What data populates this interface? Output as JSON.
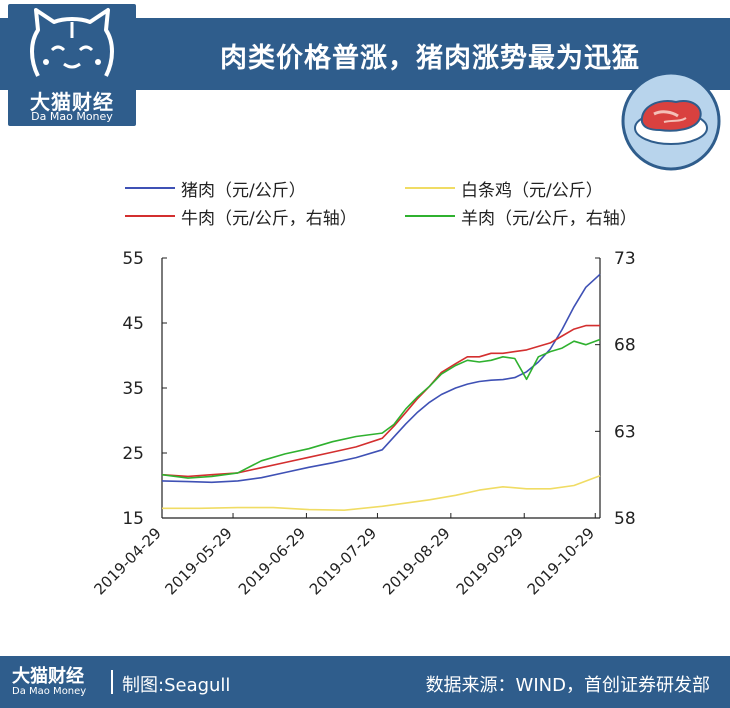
{
  "header": {
    "title": "肉类价格普涨，猪肉涨势最为迅猛",
    "logo_cn": "大猫财经",
    "logo_en": "Da Mao Money"
  },
  "footer": {
    "logo_cn": "大猫财经",
    "logo_en": "Da Mao Money",
    "credit": "制图:Seagull",
    "source": "数据来源：WIND，首创证券研发部"
  },
  "colors": {
    "header_bg": "#2f5d8c",
    "pork": "#3f51b5",
    "chicken": "#f0dc64",
    "beef": "#d32f2f",
    "mutton": "#2fb12f"
  },
  "chart_data": {
    "type": "line",
    "title": "",
    "x_ticks": [
      "2019-04-29",
      "2019-05-29",
      "2019-06-29",
      "2019-07-29",
      "2019-08-29",
      "2019-09-29",
      "2019-10-29"
    ],
    "x_range": [
      "2019-04-29",
      "2019-10-31"
    ],
    "y_left": {
      "range": [
        15,
        55
      ],
      "ticks": [
        15,
        25,
        35,
        45,
        55
      ]
    },
    "y_right": {
      "range": [
        58,
        73
      ],
      "ticks": [
        58,
        63,
        68,
        73
      ]
    },
    "grid": false,
    "legend_position": "top",
    "series": [
      {
        "name": "猪肉（元/公斤）",
        "axis": "left",
        "color": "#3f51b5",
        "x": [
          "2019-04-29",
          "2019-05-10",
          "2019-05-20",
          "2019-05-31",
          "2019-06-10",
          "2019-06-20",
          "2019-06-30",
          "2019-07-10",
          "2019-07-20",
          "2019-07-31",
          "2019-08-05",
          "2019-08-10",
          "2019-08-15",
          "2019-08-20",
          "2019-08-25",
          "2019-08-31",
          "2019-09-05",
          "2019-09-10",
          "2019-09-15",
          "2019-09-20",
          "2019-09-25",
          "2019-09-30",
          "2019-10-05",
          "2019-10-10",
          "2019-10-15",
          "2019-10-20",
          "2019-10-25",
          "2019-10-31"
        ],
        "y": [
          20.7,
          20.6,
          20.5,
          20.7,
          21.2,
          22.0,
          22.8,
          23.5,
          24.3,
          25.5,
          27.5,
          29.5,
          31.3,
          32.8,
          34.0,
          35.0,
          35.6,
          36.0,
          36.2,
          36.3,
          36.6,
          37.5,
          39.0,
          41.0,
          44.0,
          47.5,
          50.5,
          52.5
        ]
      },
      {
        "name": "白条鸡（元/公斤）",
        "axis": "left",
        "color": "#f0dc64",
        "x": [
          "2019-04-29",
          "2019-05-15",
          "2019-05-31",
          "2019-06-15",
          "2019-06-30",
          "2019-07-15",
          "2019-07-31",
          "2019-08-10",
          "2019-08-20",
          "2019-08-31",
          "2019-09-10",
          "2019-09-20",
          "2019-09-30",
          "2019-10-10",
          "2019-10-20",
          "2019-10-31"
        ],
        "y": [
          16.5,
          16.5,
          16.6,
          16.6,
          16.3,
          16.2,
          16.8,
          17.3,
          17.8,
          18.5,
          19.3,
          19.8,
          19.5,
          19.5,
          20.0,
          21.5
        ]
      },
      {
        "name": "牛肉（元/公斤，右轴）",
        "axis": "right",
        "color": "#d32f2f",
        "x": [
          "2019-04-29",
          "2019-05-10",
          "2019-05-20",
          "2019-05-31",
          "2019-06-10",
          "2019-06-20",
          "2019-06-30",
          "2019-07-10",
          "2019-07-20",
          "2019-07-31",
          "2019-08-05",
          "2019-08-10",
          "2019-08-15",
          "2019-08-20",
          "2019-08-25",
          "2019-08-31",
          "2019-09-05",
          "2019-09-10",
          "2019-09-15",
          "2019-09-20",
          "2019-09-25",
          "2019-09-30",
          "2019-10-05",
          "2019-10-10",
          "2019-10-15",
          "2019-10-20",
          "2019-10-25",
          "2019-10-31"
        ],
        "y": [
          60.5,
          60.4,
          60.5,
          60.6,
          60.9,
          61.2,
          61.5,
          61.8,
          62.1,
          62.6,
          63.3,
          64.1,
          64.9,
          65.6,
          66.4,
          66.9,
          67.3,
          67.3,
          67.5,
          67.5,
          67.6,
          67.7,
          67.9,
          68.1,
          68.5,
          68.9,
          69.1,
          69.1
        ]
      },
      {
        "name": "羊肉（元/公斤，右轴）",
        "axis": "right",
        "color": "#2fb12f",
        "x": [
          "2019-04-29",
          "2019-05-10",
          "2019-05-20",
          "2019-05-31",
          "2019-06-10",
          "2019-06-20",
          "2019-06-30",
          "2019-07-10",
          "2019-07-20",
          "2019-07-31",
          "2019-08-05",
          "2019-08-10",
          "2019-08-15",
          "2019-08-20",
          "2019-08-25",
          "2019-08-31",
          "2019-09-05",
          "2019-09-10",
          "2019-09-15",
          "2019-09-20",
          "2019-09-25",
          "2019-09-30",
          "2019-10-05",
          "2019-10-10",
          "2019-10-15",
          "2019-10-20",
          "2019-10-25",
          "2019-10-31"
        ],
        "y": [
          60.5,
          60.3,
          60.4,
          60.6,
          61.3,
          61.7,
          62.0,
          62.4,
          62.7,
          62.9,
          63.4,
          64.3,
          65.0,
          65.6,
          66.3,
          66.8,
          67.1,
          67.0,
          67.1,
          67.3,
          67.2,
          66.0,
          67.3,
          67.6,
          67.8,
          68.2,
          68.0,
          68.3
        ]
      }
    ]
  }
}
